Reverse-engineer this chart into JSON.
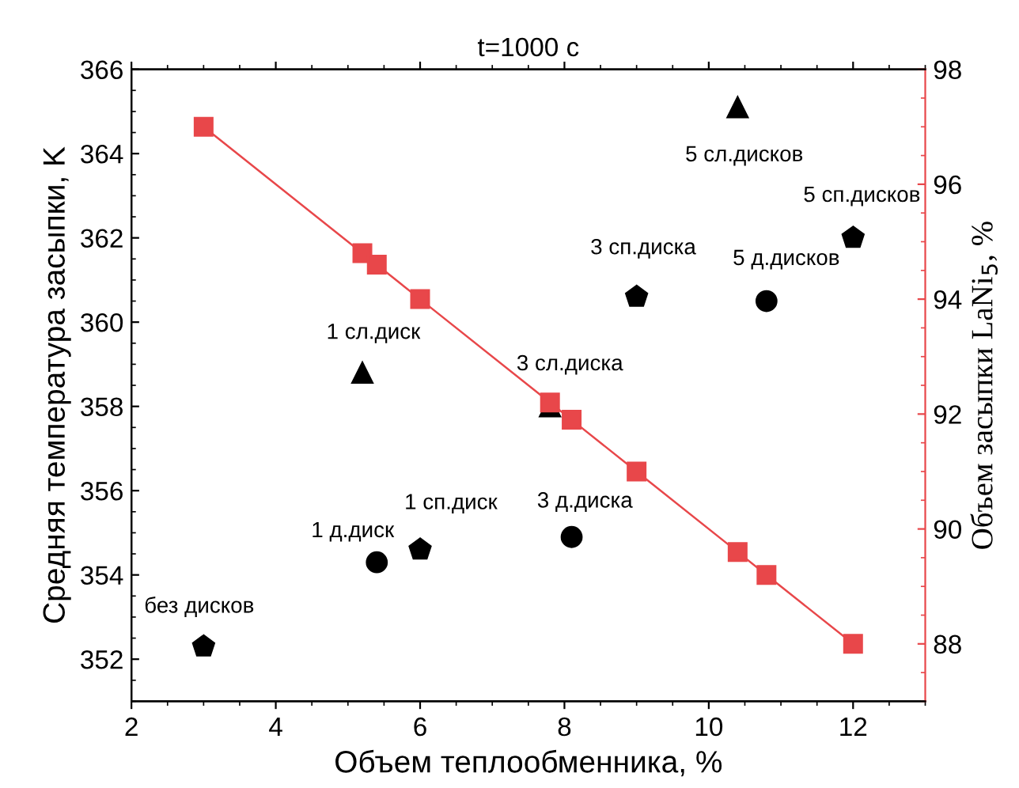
{
  "chart_data": {
    "type": "scatter",
    "title": "t=1000 с",
    "xlabel": "Объем теплообменника, %",
    "ylabel": "Средняя температура засыпки, K",
    "y2label": "Объем засыпки LaNi$_{5}$, %",
    "xlim": [
      2,
      13
    ],
    "xticks": [
      2,
      4,
      6,
      8,
      10,
      12
    ],
    "ylim": [
      351,
      366
    ],
    "yticks": [
      352,
      354,
      356,
      358,
      360,
      362,
      364,
      366
    ],
    "y2lim": [
      87,
      98
    ],
    "y2ticks": [
      88,
      90,
      92,
      94,
      96,
      98
    ],
    "grid": false,
    "legend": false,
    "series": [
      {
        "marker": "triangle",
        "color": "#000000",
        "x": [
          5.2,
          7.8,
          10.4
        ],
        "values": [
          358.8,
          358.0,
          365.1
        ]
      },
      {
        "color": "#000000",
        "x": [
          3.0,
          6.0,
          9.0,
          12.0
        ],
        "values": [
          352.3,
          354.6,
          360.6,
          362.0
        ]
      },
      {
        "marker": "circle",
        "color": "#000000",
        "x": [
          5.4,
          8.1,
          10.8
        ],
        "values": [
          354.3,
          354.9,
          360.5
        ]
      },
      {
        "type": "line",
        "marker": "square",
        "line_style": "solid",
        "color": "#e8474a",
        "axis": "y2",
        "x": [
          3.0,
          5.2,
          5.4,
          6.0,
          7.8,
          8.1,
          9.0,
          10.4,
          10.8,
          12.0
        ],
        "values": [
          97.0,
          94.8,
          94.6,
          94.0,
          92.2,
          91.9,
          91.0,
          89.6,
          89.2,
          88.0
        ]
      }
    ],
    "annotations": [
      {
        "text": "без дисков",
        "x": 3.0,
        "y": 352.3
      },
      {
        "text": "1 д.диск",
        "x": 5.4,
        "y": 354.3
      },
      {
        "text": "1 сп.диск",
        "x": 6.0,
        "y": 354.6
      },
      {
        "text": "3 д.диска",
        "x": 8.1,
        "y": 354.9
      },
      {
        "text": "3 сл.диска",
        "x": 7.8,
        "y": 358.0
      },
      {
        "text": "1 сл.диск",
        "x": 5.2,
        "y": 358.8
      },
      {
        "text": "3 сп.диска",
        "x": 9.0,
        "y": 360.6
      },
      {
        "text": "5 д.дисков",
        "x": 10.8,
        "y": 360.5
      },
      {
        "text": "5 сп.дисков",
        "x": 12.0,
        "y": 362.0
      },
      {
        "text": "5 сл.дисков",
        "x": 10.4,
        "y": 365.1
      }
    ]
  }
}
